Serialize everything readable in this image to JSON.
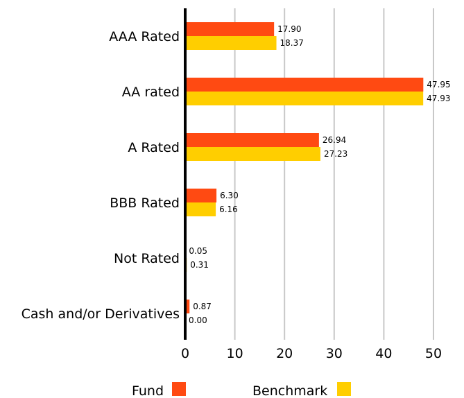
{
  "chart_data": {
    "type": "bar",
    "orientation": "horizontal",
    "categories": [
      "AAA Rated",
      "AA rated",
      "A Rated",
      "BBB Rated",
      "Not Rated",
      "Cash and/or Derivatives"
    ],
    "series": [
      {
        "name": "Fund",
        "color": "#FF4A12",
        "values": [
          17.9,
          47.95,
          26.94,
          6.3,
          0.05,
          0.87
        ],
        "labels": [
          "17.90",
          "47.95",
          "26.94",
          "6.30",
          "0.05",
          "0.87"
        ]
      },
      {
        "name": "Benchmark",
        "color": "#FFCE00",
        "values": [
          18.37,
          47.93,
          27.23,
          6.16,
          0.31,
          0.0
        ],
        "labels": [
          "18.37",
          "47.93",
          "27.23",
          "6.16",
          "0.31",
          "0.00"
        ]
      }
    ],
    "xlim": [
      0,
      50
    ],
    "xticks": [
      0,
      10,
      20,
      30,
      40,
      50
    ],
    "grid": true,
    "legend_position": "bottom"
  }
}
